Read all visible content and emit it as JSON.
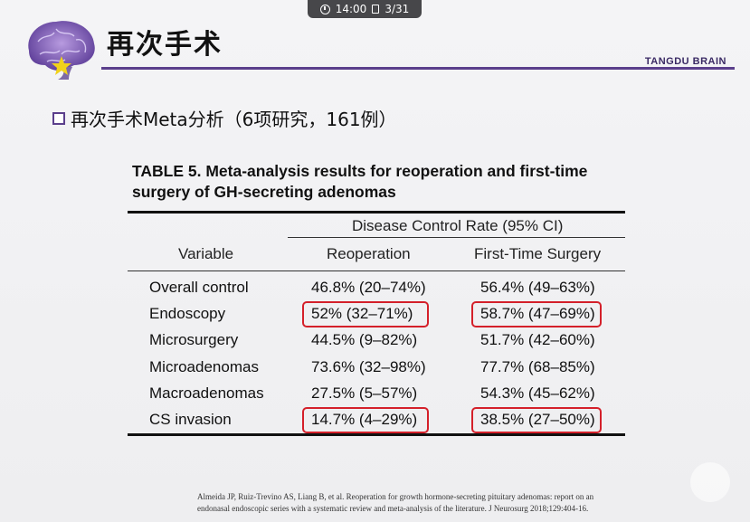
{
  "presenter_bar": {
    "time": "14:00",
    "page": "3/31"
  },
  "header": {
    "title": "再次手术",
    "brand": "TANGDU BRAIN"
  },
  "subtitle": "再次手术Meta分析（6项研究，161例）",
  "table": {
    "caption_line1": "TABLE 5. Meta-analysis results for reoperation and first-time",
    "caption_line2": "surgery of GH-secreting adenomas",
    "group_header": "Disease Control Rate (95% CI)",
    "columns": [
      "Variable",
      "Reoperation",
      "First-Time Surgery"
    ],
    "rows": [
      {
        "variable": "Overall control",
        "reoperation": "46.8% (20–74%)",
        "first_time": "56.4% (49–63%)",
        "highlighted": false
      },
      {
        "variable": "Endoscopy",
        "reoperation": "52% (32–71%)",
        "first_time": "58.7% (47–69%)",
        "highlighted": true
      },
      {
        "variable": "Microsurgery",
        "reoperation": "44.5% (9–82%)",
        "first_time": "51.7% (42–60%)",
        "highlighted": false
      },
      {
        "variable": "Microadenomas",
        "reoperation": "73.6% (32–98%)",
        "first_time": "77.7% (68–85%)",
        "highlighted": false
      },
      {
        "variable": "Macroadenomas",
        "reoperation": "27.5% (5–57%)",
        "first_time": "54.3% (45–62%)",
        "highlighted": false
      },
      {
        "variable": "CS invasion",
        "reoperation": "14.7% (4–29%)",
        "first_time": "38.5% (27–50%)",
        "highlighted": true
      }
    ]
  },
  "citation": {
    "line1": "Almeida JP, Ruiz-Trevino AS, Liang B, et al. Reoperation for growth hormone-secreting pituitary adenomas: report on an",
    "line2": "endonasal endoscopic series with a systematic review and meta-analysis of the literature. J Neurosurg 2018;129:404-16."
  },
  "colors": {
    "accent": "#5b3f8c",
    "highlight": "#d4202a"
  }
}
